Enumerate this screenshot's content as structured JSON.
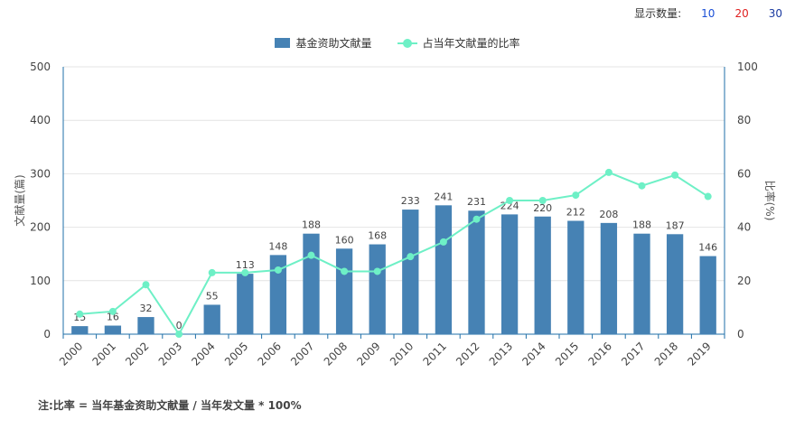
{
  "controls": {
    "label": "显示数量:",
    "options": [
      "10",
      "20",
      "30"
    ]
  },
  "note": "注:比率 = 当年基金资助文献量 / 当年发文量 * 100%",
  "colors": {
    "bar": "#4682b4",
    "line": "#6ef0c6",
    "axis": "#1f6fa8",
    "grid": "#e4e4e4"
  },
  "chart_data": {
    "type": "bar",
    "categories": [
      "2000",
      "2001",
      "2002",
      "2003",
      "2004",
      "2005",
      "2006",
      "2007",
      "2008",
      "2009",
      "2010",
      "2011",
      "2012",
      "2013",
      "2014",
      "2015",
      "2016",
      "2017",
      "2018",
      "2019"
    ],
    "series": [
      {
        "name": "基金资助文献量",
        "type": "bar",
        "axis": "left",
        "values": [
          15,
          16,
          32,
          0,
          55,
          113,
          148,
          188,
          160,
          168,
          233,
          241,
          231,
          224,
          220,
          212,
          208,
          188,
          187,
          146
        ]
      },
      {
        "name": "占当年文献量的比率",
        "type": "line",
        "axis": "right",
        "values": [
          7.5,
          8.5,
          18.5,
          0,
          23,
          23,
          24,
          29.5,
          23.5,
          23.5,
          29,
          34.5,
          43,
          50,
          50,
          52,
          60.5,
          55.5,
          59.5,
          51.5
        ]
      }
    ],
    "ylabel": "文献量(篇)",
    "ylabel_right": "比率(%)",
    "ylim": [
      0,
      500
    ],
    "ylim_right": [
      0,
      100
    ],
    "yticks": [
      "0",
      "100",
      "200",
      "300",
      "400",
      "500"
    ],
    "yticks_right": [
      "0",
      "20",
      "40",
      "60",
      "80",
      "100"
    ],
    "grid": true,
    "legend_position": "top-center"
  }
}
